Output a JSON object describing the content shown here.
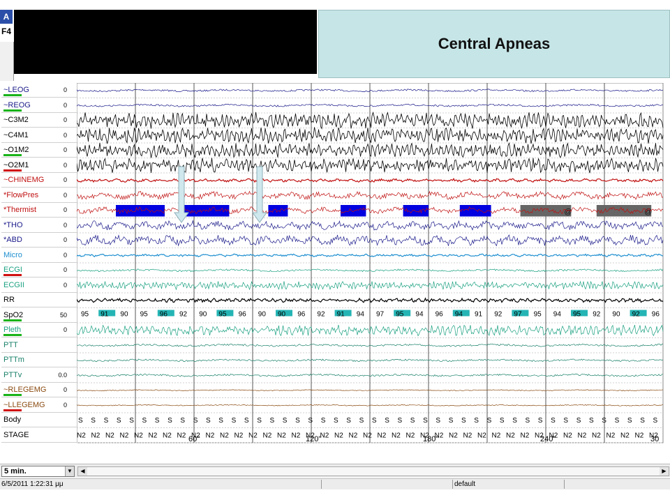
{
  "window": {
    "app_icon_letter": "A",
    "function_key_label": "F4"
  },
  "title": "Central Apneas",
  "channels": [
    {
      "name": "~LEOG",
      "scale": "0",
      "color": "#1a1a8a",
      "underline": "#19b319"
    },
    {
      "name": "~REOG",
      "scale": "0",
      "color": "#1a1a8a",
      "underline": "#19b319"
    },
    {
      "name": "~C3M2",
      "scale": "0",
      "color": "#000000"
    },
    {
      "name": "~C4M1",
      "scale": "0",
      "color": "#000000"
    },
    {
      "name": "~O1M2",
      "scale": "0",
      "color": "#000000",
      "underline": "#19b319"
    },
    {
      "name": "~O2M1",
      "scale": "0",
      "color": "#000000",
      "underline": "#d01010"
    },
    {
      "name": "~CHINEMG",
      "scale": "0",
      "color": "#c01010"
    },
    {
      "name": "*FlowPres",
      "scale": "0",
      "color": "#c01010"
    },
    {
      "name": "*Thermist",
      "scale": "0",
      "color": "#c01010"
    },
    {
      "name": "*THO",
      "scale": "0",
      "color": "#1a1a8a"
    },
    {
      "name": "*ABD",
      "scale": "0",
      "color": "#1a1a8a"
    },
    {
      "name": "Micro",
      "scale": "0",
      "color": "#1f8fd0"
    },
    {
      "name": "ECGI",
      "scale": "0",
      "color": "#19a080",
      "underline": "#d01010"
    },
    {
      "name": "ECGII",
      "scale": "0",
      "color": "#19a080"
    },
    {
      "name": "RR",
      "scale": "",
      "color": "#000000"
    },
    {
      "name": "SpO2",
      "scale": "50",
      "color": "#000000",
      "underline": "#19b319"
    },
    {
      "name": "Pleth",
      "scale": "0",
      "color": "#19a080",
      "underline": "#19b319"
    },
    {
      "name": "PTT",
      "scale": "",
      "color": "#19806a"
    },
    {
      "name": "PTTm",
      "scale": "",
      "color": "#19806a"
    },
    {
      "name": "PTTv",
      "scale": "0.0",
      "color": "#19806a"
    },
    {
      "name": "~RLEGEMG",
      "scale": "0",
      "color": "#8a4a10",
      "underline": "#19b319"
    },
    {
      "name": "~LLEGEMG",
      "scale": "0",
      "color": "#8a4a10",
      "underline": "#d01010"
    },
    {
      "name": "Body",
      "scale": "",
      "color": "#000000"
    },
    {
      "name": "STAGE",
      "scale": "",
      "color": "#000000"
    }
  ],
  "spo2_values": [
    "95",
    "91",
    "90",
    "95",
    "96",
    "92",
    "90",
    "95",
    "96",
    "90",
    "90",
    "96",
    "92",
    "91",
    "94",
    "97",
    "95",
    "94",
    "96",
    "94",
    "91",
    "92",
    "97",
    "95",
    "94",
    "95",
    "92",
    "90",
    "92",
    "96"
  ],
  "body_positions": [
    "S",
    "S",
    "S",
    "S",
    "S",
    "S",
    "S",
    "S",
    "S",
    "S",
    "S",
    "S",
    "S",
    "S",
    "S",
    "S",
    "S",
    "S",
    "S",
    "S",
    "S",
    "S",
    "S",
    "S",
    "S",
    "S",
    "S",
    "S",
    "S",
    "S",
    "S",
    "S",
    "S",
    "S",
    "S",
    "S",
    "S",
    "S",
    "S",
    "S",
    "S",
    "S",
    "S",
    "S",
    "S",
    "S"
  ],
  "stages": [
    "N2",
    "N2",
    "N2",
    "N2",
    "N2",
    "N2",
    "N2",
    "N2",
    "N2",
    "N2",
    "N2",
    "N2",
    "N2",
    "N2",
    "N2",
    "N2",
    "N2",
    "N2",
    "N2",
    "N2",
    "N2",
    "N2",
    "N2",
    "N2",
    "N2",
    "N2",
    "N2",
    "N2",
    "N2",
    "N2",
    "N2",
    "N2",
    "N2",
    "N2",
    "N2",
    "N2",
    "N2",
    "N2",
    "N2",
    "N2",
    "N2"
  ],
  "time_axis": {
    "ticks": [
      "60\"",
      "120\"",
      "180\"",
      "240\"",
      "30"
    ],
    "window_seconds": 300
  },
  "apnea_events": [
    {
      "start_s": 20,
      "end_s": 45,
      "color": "#0000e0"
    },
    {
      "start_s": 55,
      "end_s": 78,
      "color": "#0000e0"
    },
    {
      "start_s": 98,
      "end_s": 108,
      "color": "#0000e0"
    },
    {
      "start_s": 135,
      "end_s": 148,
      "color": "#0000e0"
    },
    {
      "start_s": 167,
      "end_s": 180,
      "color": "#0000e0"
    },
    {
      "start_s": 196,
      "end_s": 212,
      "color": "#0000e0"
    },
    {
      "start_s": 227,
      "end_s": 253,
      "color": "#666666",
      "marker": "@"
    },
    {
      "start_s": 266,
      "end_s": 294,
      "color": "#666666",
      "marker": "@"
    }
  ],
  "zoom": {
    "label": "5 min."
  },
  "status": {
    "datetime": "6/5/2011 1:22:31 μμ",
    "mode": "default"
  }
}
